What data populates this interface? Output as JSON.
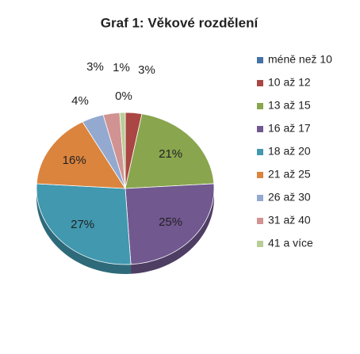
{
  "chart_data": {
    "type": "pie",
    "title": "Graf 1: Věkové rozdělení",
    "categories": [
      "méně než 10",
      "10 až 12",
      "13 až 15",
      "16 až 17",
      "18 až 20",
      "21 až 25",
      "26 až 30",
      "31 až 40",
      "41 a více"
    ],
    "values": [
      0,
      3,
      21,
      25,
      27,
      16,
      4,
      3,
      1
    ],
    "value_labels": [
      "0%",
      "3%",
      "21%",
      "25%",
      "27%",
      "16%",
      "4%",
      "3%",
      "1%"
    ],
    "colors": [
      "#4572a7",
      "#aa4643",
      "#89a54e",
      "#71588f",
      "#4198af",
      "#db843d",
      "#93a9cf",
      "#d19392",
      "#b9cd96"
    ],
    "legend": "right"
  }
}
